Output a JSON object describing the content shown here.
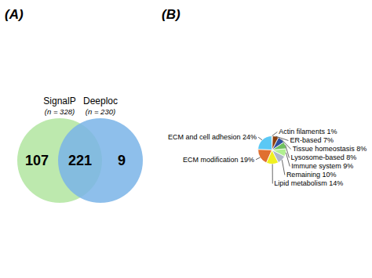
{
  "chart_data": [
    {
      "type": "venn",
      "title": "(A)",
      "series": [
        {
          "name": "SignalP",
          "annotation": "(n = 328)",
          "color": "#b2e5a0"
        },
        {
          "name": "Deeploc",
          "annotation": "(n = 230)",
          "color": "#7ab4e8"
        }
      ],
      "values": [
        107,
        221,
        9
      ],
      "data_labels": true
    },
    {
      "type": "pie",
      "title": "(B)",
      "categories": [
        "Actin filaments 1%",
        "ECM and cell adhesion 24%",
        "ECM modification 19%",
        "Lipid metabolism 14%",
        "Remaining 10%",
        "Immune system 9%",
        "Lysosome-based 8%",
        "Tissue homeostasis 8%",
        "ER-based 7%"
      ],
      "values": [
        1,
        24,
        19,
        14,
        10,
        9,
        8,
        8,
        7
      ],
      "colors": [
        "#f0c020",
        "#5bc8f5",
        "#e07030",
        "#f0f020",
        "#b0b8c8",
        "#b0f090",
        "#70c060",
        "#3050a0",
        "#8b4010"
      ]
    }
  ]
}
